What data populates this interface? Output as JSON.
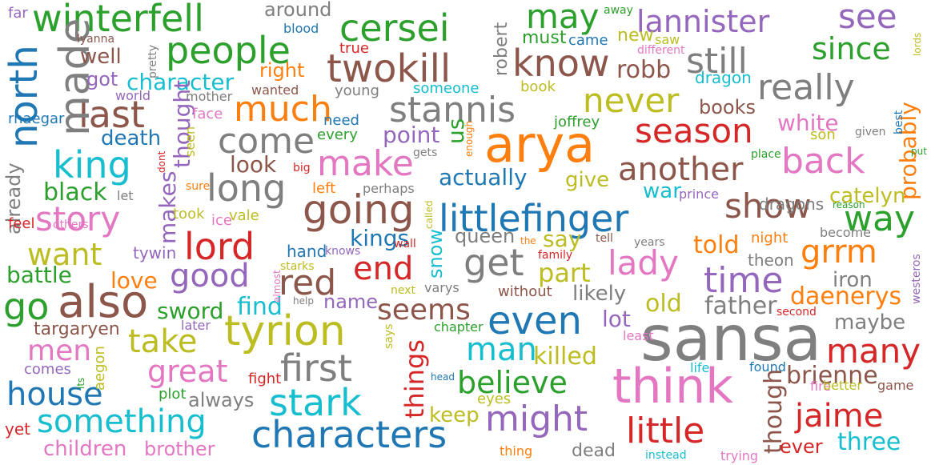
{
  "colors": {
    "blue": "#1f77b4",
    "orange": "#ff7f0e",
    "green": "#2ca02c",
    "red": "#d62728",
    "purple": "#9467bd",
    "brown": "#8c564b",
    "pink": "#e377c2",
    "gray": "#7f7f7f",
    "olive": "#bcbd22",
    "cyan": "#17becf"
  },
  "words": [
    {
      "text": "sansa",
      "color": "gray",
      "vertical": false
    },
    {
      "text": "arya",
      "color": "orange",
      "vertical": false
    },
    {
      "text": "think",
      "color": "pink",
      "vertical": false
    },
    {
      "text": "tyrion",
      "color": "olive",
      "vertical": false
    },
    {
      "text": "also",
      "color": "brown",
      "vertical": false
    },
    {
      "text": "going",
      "color": "brown",
      "vertical": false
    },
    {
      "text": "littlefinger",
      "color": "blue",
      "vertical": false
    },
    {
      "text": "characters",
      "color": "blue",
      "vertical": false
    },
    {
      "text": "stark",
      "color": "cyan",
      "vertical": false
    },
    {
      "text": "even",
      "color": "blue",
      "vertical": false
    },
    {
      "text": "first",
      "color": "gray",
      "vertical": false
    },
    {
      "text": "twokill",
      "color": "brown",
      "vertical": false
    },
    {
      "text": "know",
      "color": "brown",
      "vertical": false
    },
    {
      "text": "cersei",
      "color": "green",
      "vertical": false
    },
    {
      "text": "winterfell",
      "color": "green",
      "vertical": false
    },
    {
      "text": "people",
      "color": "green",
      "vertical": false
    },
    {
      "text": "lord",
      "color": "red",
      "vertical": false
    },
    {
      "text": "long",
      "color": "gray",
      "vertical": false
    },
    {
      "text": "king",
      "color": "cyan",
      "vertical": false
    },
    {
      "text": "last",
      "color": "brown",
      "vertical": false
    },
    {
      "text": "much",
      "color": "orange",
      "vertical": false
    },
    {
      "text": "stannis",
      "color": "gray",
      "vertical": false
    },
    {
      "text": "never",
      "color": "olive",
      "vertical": false
    },
    {
      "text": "still",
      "color": "gray",
      "vertical": false
    },
    {
      "text": "really",
      "color": "gray",
      "vertical": false
    },
    {
      "text": "season",
      "color": "red",
      "vertical": false
    },
    {
      "text": "back",
      "color": "pink",
      "vertical": false
    },
    {
      "text": "another",
      "color": "brown",
      "vertical": false
    },
    {
      "text": "show",
      "color": "brown",
      "vertical": false
    },
    {
      "text": "way",
      "color": "green",
      "vertical": false
    },
    {
      "text": "make",
      "color": "pink",
      "vertical": false
    },
    {
      "text": "come",
      "color": "gray",
      "vertical": false
    },
    {
      "text": "good",
      "color": "purple",
      "vertical": false
    },
    {
      "text": "red",
      "color": "brown",
      "vertical": false
    },
    {
      "text": "end",
      "color": "red",
      "vertical": false
    },
    {
      "text": "get",
      "color": "gray",
      "vertical": false
    },
    {
      "text": "lady",
      "color": "pink",
      "vertical": false
    },
    {
      "text": "time",
      "color": "purple",
      "vertical": false
    },
    {
      "text": "grrm",
      "color": "orange",
      "vertical": false
    },
    {
      "text": "go",
      "color": "green",
      "vertical": false
    },
    {
      "text": "story",
      "color": "pink",
      "vertical": false
    },
    {
      "text": "want",
      "color": "olive",
      "vertical": false
    },
    {
      "text": "take",
      "color": "olive",
      "vertical": false
    },
    {
      "text": "great",
      "color": "pink",
      "vertical": false
    },
    {
      "text": "house",
      "color": "blue",
      "vertical": false
    },
    {
      "text": "something",
      "color": "cyan",
      "vertical": false
    },
    {
      "text": "men",
      "color": "pink",
      "vertical": false
    },
    {
      "text": "man",
      "color": "cyan",
      "vertical": false
    },
    {
      "text": "might",
      "color": "purple",
      "vertical": false
    },
    {
      "text": "little",
      "color": "red",
      "vertical": false
    },
    {
      "text": "jaime",
      "color": "red",
      "vertical": false
    },
    {
      "text": "many",
      "color": "red",
      "vertical": false
    },
    {
      "text": "believe",
      "color": "green",
      "vertical": false
    },
    {
      "text": "seems",
      "color": "brown",
      "vertical": false
    },
    {
      "text": "killed",
      "color": "olive",
      "vertical": false
    },
    {
      "text": "may",
      "color": "green",
      "vertical": false
    },
    {
      "text": "see",
      "color": "purple",
      "vertical": false
    },
    {
      "text": "lannister",
      "color": "purple",
      "vertical": false
    },
    {
      "text": "since",
      "color": "green",
      "vertical": false
    },
    {
      "text": "made",
      "color": "gray",
      "vertical": true
    },
    {
      "text": "north",
      "color": "blue",
      "vertical": true
    },
    {
      "text": "robb",
      "color": "brown",
      "vertical": false
    },
    {
      "text": "character",
      "color": "cyan",
      "vertical": false
    },
    {
      "text": "well",
      "color": "brown",
      "vertical": false
    },
    {
      "text": "got",
      "color": "purple",
      "vertical": false
    },
    {
      "text": "right",
      "color": "orange",
      "vertical": false
    },
    {
      "text": "around",
      "color": "gray",
      "vertical": false
    },
    {
      "text": "must",
      "color": "green",
      "vertical": false
    },
    {
      "text": "new",
      "color": "olive",
      "vertical": false
    },
    {
      "text": "dragon",
      "color": "cyan",
      "vertical": false
    },
    {
      "text": "books",
      "color": "brown",
      "vertical": false
    },
    {
      "text": "white",
      "color": "pink",
      "vertical": false
    },
    {
      "text": "probably",
      "color": "orange",
      "vertical": true
    },
    {
      "text": "catelyn",
      "color": "olive",
      "vertical": false
    },
    {
      "text": "death",
      "color": "blue",
      "vertical": false
    },
    {
      "text": "thought",
      "color": "purple",
      "vertical": true
    },
    {
      "text": "look",
      "color": "brown",
      "vertical": false
    },
    {
      "text": "black",
      "color": "green",
      "vertical": false
    },
    {
      "text": "actually",
      "color": "blue",
      "vertical": false
    },
    {
      "text": "give",
      "color": "olive",
      "vertical": false
    },
    {
      "text": "war",
      "color": "cyan",
      "vertical": false
    },
    {
      "text": "point",
      "color": "purple",
      "vertical": false
    },
    {
      "text": "us",
      "color": "green",
      "vertical": true
    },
    {
      "text": "kings",
      "color": "blue",
      "vertical": false
    },
    {
      "text": "makes",
      "color": "purple",
      "vertical": true
    },
    {
      "text": "say",
      "color": "olive",
      "vertical": false
    },
    {
      "text": "told",
      "color": "orange",
      "vertical": false
    },
    {
      "text": "part",
      "color": "olive",
      "vertical": false
    },
    {
      "text": "love",
      "color": "orange",
      "vertical": false
    },
    {
      "text": "battle",
      "color": "green",
      "vertical": false
    },
    {
      "text": "find",
      "color": "cyan",
      "vertical": false
    },
    {
      "text": "name",
      "color": "purple",
      "vertical": false
    },
    {
      "text": "sword",
      "color": "green",
      "vertical": false
    },
    {
      "text": "old",
      "color": "olive",
      "vertical": false
    },
    {
      "text": "father",
      "color": "gray",
      "vertical": false
    },
    {
      "text": "likely",
      "color": "gray",
      "vertical": false
    },
    {
      "text": "daenerys",
      "color": "orange",
      "vertical": false
    },
    {
      "text": "iron",
      "color": "gray",
      "vertical": false
    },
    {
      "text": "maybe",
      "color": "gray",
      "vertical": false
    },
    {
      "text": "lot",
      "color": "purple",
      "vertical": false
    },
    {
      "text": "queen",
      "color": "gray",
      "vertical": false
    },
    {
      "text": "snow",
      "color": "cyan",
      "vertical": true
    },
    {
      "text": "things",
      "color": "red",
      "vertical": true
    },
    {
      "text": "theon",
      "color": "gray",
      "vertical": false
    },
    {
      "text": "already",
      "color": "gray",
      "vertical": true
    },
    {
      "text": "targaryen",
      "color": "brown",
      "vertical": false
    },
    {
      "text": "always",
      "color": "gray",
      "vertical": false
    },
    {
      "text": "keep",
      "color": "olive",
      "vertical": false
    },
    {
      "text": "brienne",
      "color": "brown",
      "vertical": false
    },
    {
      "text": "though",
      "color": "brown",
      "vertical": true
    },
    {
      "text": "three",
      "color": "cyan",
      "vertical": false
    },
    {
      "text": "children",
      "color": "pink",
      "vertical": false
    },
    {
      "text": "brother",
      "color": "pink",
      "vertical": false
    },
    {
      "text": "dead",
      "color": "gray",
      "vertical": false
    },
    {
      "text": "ever",
      "color": "red",
      "vertical": false
    },
    {
      "text": "tywin",
      "color": "purple",
      "vertical": false
    },
    {
      "text": "hand",
      "color": "blue",
      "vertical": false
    },
    {
      "text": "plot",
      "color": "green",
      "vertical": false
    },
    {
      "text": "comes",
      "color": "purple",
      "vertical": false
    },
    {
      "text": "fight",
      "color": "red",
      "vertical": false
    },
    {
      "text": "yet",
      "color": "red",
      "vertical": false
    },
    {
      "text": "aegon",
      "color": "olive",
      "vertical": true
    },
    {
      "text": "later",
      "color": "purple",
      "vertical": false
    },
    {
      "text": "eyes",
      "color": "olive",
      "vertical": false
    },
    {
      "text": "chapter",
      "color": "green",
      "vertical": false
    },
    {
      "text": "joffrey",
      "color": "green",
      "vertical": false
    },
    {
      "text": "every",
      "color": "green",
      "vertical": false
    },
    {
      "text": "need",
      "color": "blue",
      "vertical": false
    },
    {
      "text": "face",
      "color": "pink",
      "vertical": false
    },
    {
      "text": "dragons",
      "color": "gray",
      "vertical": false
    },
    {
      "text": "prince",
      "color": "purple",
      "vertical": false
    },
    {
      "text": "ice",
      "color": "pink",
      "vertical": false
    },
    {
      "text": "vale",
      "color": "olive",
      "vertical": false
    },
    {
      "text": "took",
      "color": "olive",
      "vertical": false
    },
    {
      "text": "left",
      "color": "orange",
      "vertical": false
    },
    {
      "text": "perhaps",
      "color": "gray",
      "vertical": false
    },
    {
      "text": "feel",
      "color": "red",
      "vertical": false
    },
    {
      "text": "others",
      "color": "pink",
      "vertical": false
    },
    {
      "text": "let",
      "color": "gray",
      "vertical": false
    },
    {
      "text": "sure",
      "color": "orange",
      "vertical": false
    },
    {
      "text": "big",
      "color": "red",
      "vertical": false
    },
    {
      "text": "gets",
      "color": "gray",
      "vertical": false
    },
    {
      "text": "book",
      "color": "olive",
      "vertical": false
    },
    {
      "text": "wanted",
      "color": "brown",
      "vertical": false
    },
    {
      "text": "mother",
      "color": "gray",
      "vertical": false
    },
    {
      "text": "world",
      "color": "purple",
      "vertical": false
    },
    {
      "text": "young",
      "color": "gray",
      "vertical": false
    },
    {
      "text": "someone",
      "color": "cyan",
      "vertical": false
    },
    {
      "text": "came",
      "color": "blue",
      "vertical": false
    },
    {
      "text": "saw",
      "color": "olive",
      "vertical": false
    },
    {
      "text": "true",
      "color": "red",
      "vertical": false
    },
    {
      "text": "blood",
      "color": "blue",
      "vertical": false
    },
    {
      "text": "lyanna",
      "color": "brown",
      "vertical": false
    },
    {
      "text": "far",
      "color": "purple",
      "vertical": false
    },
    {
      "text": "away",
      "color": "green",
      "vertical": false
    },
    {
      "text": "different",
      "color": "pink",
      "vertical": false
    },
    {
      "text": "son",
      "color": "olive",
      "vertical": false
    },
    {
      "text": "given",
      "color": "gray",
      "vertical": false
    },
    {
      "text": "place",
      "color": "green",
      "vertical": false
    },
    {
      "text": "reason",
      "color": "green",
      "vertical": false
    },
    {
      "text": "become",
      "color": "gray",
      "vertical": false
    },
    {
      "text": "night",
      "color": "orange",
      "vertical": false
    },
    {
      "text": "tell",
      "color": "brown",
      "vertical": false
    },
    {
      "text": "years",
      "color": "gray",
      "vertical": false
    },
    {
      "text": "family",
      "color": "red",
      "vertical": false
    },
    {
      "text": "the",
      "color": "orange",
      "vertical": false
    },
    {
      "text": "wall",
      "color": "red",
      "vertical": false
    },
    {
      "text": "knows",
      "color": "purple",
      "vertical": false
    },
    {
      "text": "starks",
      "color": "olive",
      "vertical": false
    },
    {
      "text": "next",
      "color": "olive",
      "vertical": false
    },
    {
      "text": "varys",
      "color": "gray",
      "vertical": false
    },
    {
      "text": "without",
      "color": "brown",
      "vertical": false
    },
    {
      "text": "help",
      "color": "gray",
      "vertical": false
    },
    {
      "text": "second",
      "color": "red",
      "vertical": false
    },
    {
      "text": "least",
      "color": "pink",
      "vertical": false
    },
    {
      "text": "life",
      "color": "cyan",
      "vertical": false
    },
    {
      "text": "found",
      "color": "blue",
      "vertical": false
    },
    {
      "text": "fire",
      "color": "pink",
      "vertical": false
    },
    {
      "text": "better",
      "color": "olive",
      "vertical": false
    },
    {
      "text": "game",
      "color": "brown",
      "vertical": false
    },
    {
      "text": "head",
      "color": "blue",
      "vertical": false
    },
    {
      "text": "thing",
      "color": "orange",
      "vertical": false
    },
    {
      "text": "instead",
      "color": "cyan",
      "vertical": false
    },
    {
      "text": "trying",
      "color": "pink",
      "vertical": false
    },
    {
      "text": "robert",
      "color": "gray",
      "vertical": true
    },
    {
      "text": "pretty",
      "color": "gray",
      "vertical": true
    },
    {
      "text": "rhaegar",
      "color": "blue",
      "vertical": false
    },
    {
      "text": "seen",
      "color": "olive",
      "vertical": true
    },
    {
      "text": "dont",
      "color": "red",
      "vertical": true
    },
    {
      "text": "enough",
      "color": "orange",
      "vertical": true
    },
    {
      "text": "best",
      "color": "blue",
      "vertical": true
    },
    {
      "text": "put",
      "color": "green",
      "vertical": false
    },
    {
      "text": "called",
      "color": "olive",
      "vertical": true
    },
    {
      "text": "almost",
      "color": "pink",
      "vertical": true
    },
    {
      "text": "says",
      "color": "olive",
      "vertical": true
    },
    {
      "text": "its",
      "color": "green",
      "vertical": true
    },
    {
      "text": "lords",
      "color": "olive",
      "vertical": true
    },
    {
      "text": "westeros",
      "color": "purple",
      "vertical": true
    }
  ]
}
